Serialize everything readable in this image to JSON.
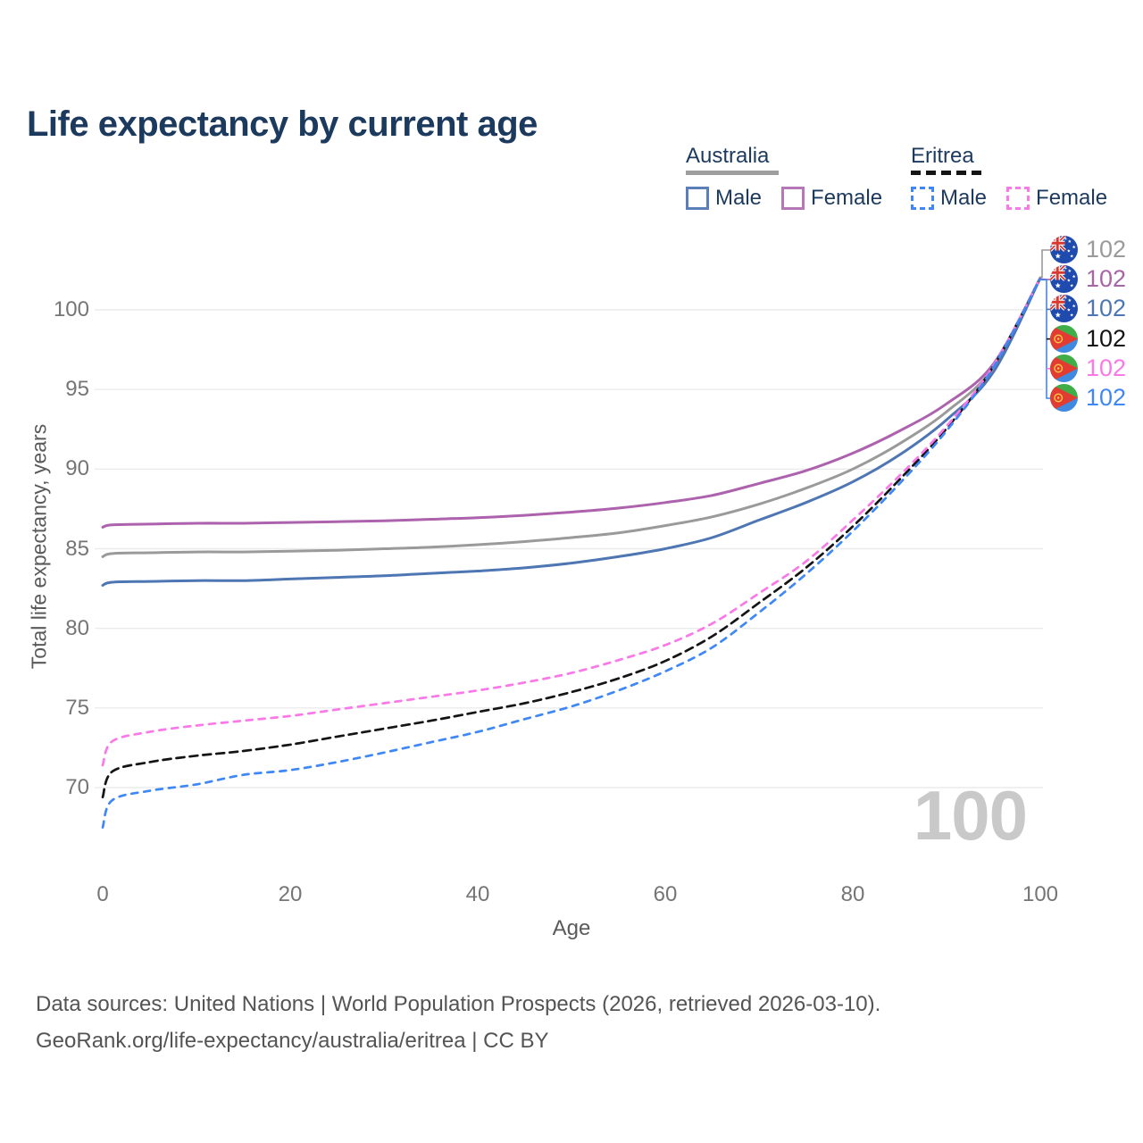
{
  "title": "Life expectancy by current age",
  "legend": {
    "groups": [
      {
        "country": "Australia",
        "style": "solid",
        "items": [
          {
            "label": "Male"
          },
          {
            "label": "Female"
          }
        ]
      },
      {
        "country": "Eritrea",
        "style": "dashed",
        "items": [
          {
            "label": "Male"
          },
          {
            "label": "Female"
          }
        ]
      }
    ]
  },
  "axes": {
    "x_label": "Age",
    "y_label": "Total life expectancy, years",
    "x_ticks": [
      0,
      20,
      40,
      60,
      80,
      100
    ],
    "y_ticks": [
      100,
      95,
      90,
      85,
      80,
      75,
      70
    ]
  },
  "watermark": "100",
  "footer": {
    "line1": "Data sources: United Nations | World Population Prospects (2026, retrieved 2026-03-10).",
    "line2": "GeoRank.org/life-expectancy/australia/eritrea | CC BY"
  },
  "colors": {
    "title_text": "#1c3a5e",
    "axis_text": "#757575",
    "gridline": "#ebebeb",
    "watermark": "#c9c9c9",
    "australia_male": "#4d76b3",
    "australia_female": "#ac62ac",
    "australia_total": "#9a9a9a",
    "eritrea_male": "#3f87f5",
    "eritrea_female": "#fa78e8",
    "eritrea_total": "#141414"
  },
  "chart_data": {
    "type": "line",
    "title": "Life expectancy by current age",
    "xlabel": "Age",
    "ylabel": "Total life expectancy, years",
    "xlim": [
      0,
      100
    ],
    "ylim": [
      67,
      103
    ],
    "grid": "horizontal",
    "legend_position": "top-right",
    "x": [
      0,
      1,
      5,
      10,
      15,
      20,
      25,
      30,
      35,
      40,
      45,
      50,
      55,
      60,
      65,
      70,
      75,
      80,
      85,
      90,
      95,
      100
    ],
    "series": [
      {
        "id": "australia-total",
        "name": "Australia Total",
        "country": "Australia",
        "sex": "total",
        "color": "#9a9a9a",
        "dash": "solid",
        "label_row": 0,
        "end_value": "102",
        "flag": "australia",
        "label_color": "#9a9a9a",
        "values": [
          84.5,
          84.7,
          84.75,
          84.8,
          84.8,
          84.85,
          84.9,
          85.0,
          85.1,
          85.25,
          85.45,
          85.7,
          86.0,
          86.45,
          87.0,
          87.8,
          88.8,
          90.0,
          91.6,
          93.6,
          96.4,
          102
        ]
      },
      {
        "id": "australia-female",
        "name": "Australia Female",
        "country": "Australia",
        "sex": "female",
        "color": "#ac62ac",
        "dash": "solid",
        "label_row": 1,
        "end_value": "102",
        "flag": "australia",
        "label_color": "#a864a8",
        "values": [
          86.35,
          86.5,
          86.55,
          86.6,
          86.6,
          86.65,
          86.7,
          86.75,
          86.85,
          86.95,
          87.1,
          87.3,
          87.55,
          87.9,
          88.35,
          89.1,
          89.9,
          91.0,
          92.4,
          94.1,
          96.6,
          102
        ]
      },
      {
        "id": "australia-male",
        "name": "Australia Male",
        "country": "Australia",
        "sex": "male",
        "color": "#4d76b3",
        "dash": "solid",
        "label_row": 2,
        "end_value": "102",
        "flag": "australia",
        "label_color": "#4d76b3",
        "values": [
          82.7,
          82.9,
          82.95,
          83.0,
          83.0,
          83.1,
          83.2,
          83.3,
          83.45,
          83.6,
          83.8,
          84.1,
          84.5,
          85.0,
          85.7,
          86.8,
          87.9,
          89.2,
          90.9,
          93.1,
          96.1,
          102
        ]
      },
      {
        "id": "eritrea-total",
        "name": "Eritrea Total",
        "country": "Eritrea",
        "sex": "total",
        "color": "#141414",
        "dash": "dashed",
        "label_row": 3,
        "end_value": "102",
        "flag": "eritrea",
        "label_color": "#141414",
        "values": [
          69.4,
          71.0,
          71.6,
          72.0,
          72.3,
          72.7,
          73.2,
          73.7,
          74.2,
          74.75,
          75.3,
          76.0,
          76.85,
          77.95,
          79.5,
          81.6,
          83.8,
          86.4,
          89.35,
          92.55,
          96.45,
          102
        ]
      },
      {
        "id": "eritrea-female",
        "name": "Eritrea Female",
        "country": "Eritrea",
        "sex": "female",
        "color": "#fa78e8",
        "dash": "dashed",
        "label_row": 4,
        "end_value": "102",
        "flag": "eritrea",
        "label_color": "#fa78e8",
        "values": [
          71.4,
          72.9,
          73.5,
          73.9,
          74.2,
          74.5,
          74.9,
          75.3,
          75.7,
          76.1,
          76.6,
          77.2,
          78.0,
          78.95,
          80.3,
          82.2,
          84.2,
          86.8,
          89.6,
          92.7,
          96.5,
          102
        ]
      },
      {
        "id": "eritrea-male",
        "name": "Eritrea Male",
        "country": "Eritrea",
        "sex": "male",
        "color": "#3f87f5",
        "dash": "dashed",
        "label_row": 5,
        "end_value": "102",
        "flag": "eritrea",
        "label_color": "#3f87f5",
        "values": [
          67.5,
          69.2,
          69.8,
          70.2,
          70.8,
          71.1,
          71.6,
          72.2,
          72.85,
          73.5,
          74.3,
          75.1,
          76.1,
          77.3,
          78.8,
          81.0,
          83.4,
          86.1,
          89.1,
          92.4,
          96.4,
          102
        ]
      }
    ]
  }
}
